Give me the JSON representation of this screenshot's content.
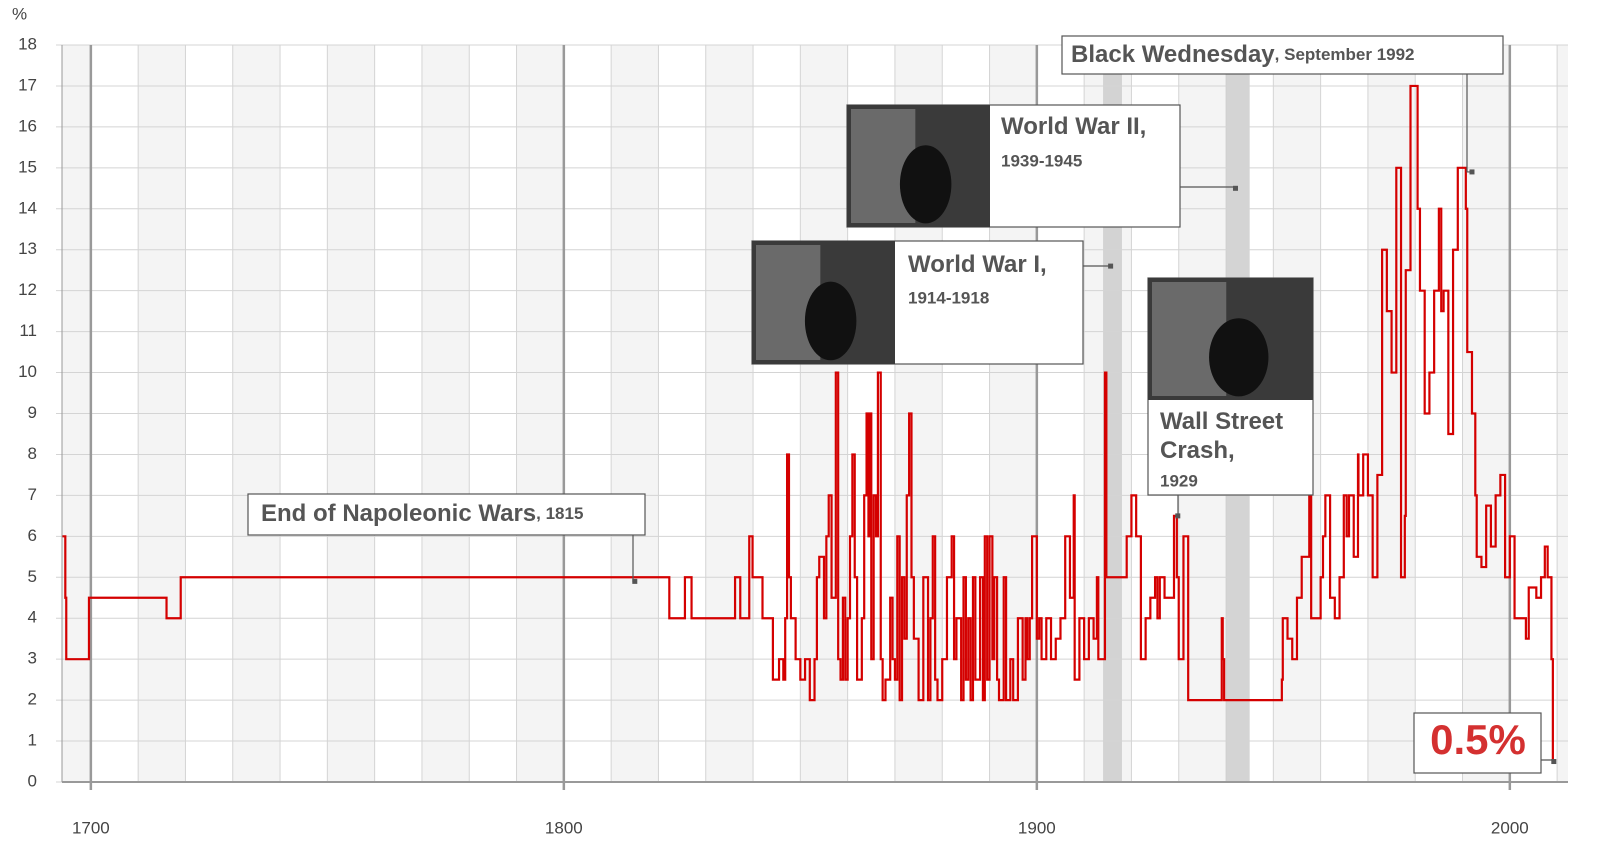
{
  "chart_data": {
    "type": "line",
    "step": true,
    "y_unit": "%",
    "color": "#d40000",
    "xlim": [
      1693.9,
      2012.3
    ],
    "ylim": [
      0,
      18
    ],
    "xticks": [
      1700,
      1800,
      1900,
      2000
    ],
    "x_minor_step": 10,
    "yticks": [
      0,
      1,
      2,
      3,
      4,
      5,
      6,
      7,
      8,
      9,
      10,
      11,
      12,
      13,
      14,
      15,
      16,
      17,
      18
    ],
    "grid": true,
    "spans": [
      {
        "x0": 1914,
        "x1": 1918,
        "color": "#cccccc"
      },
      {
        "x0": 1940,
        "x1": 1945,
        "color": "#cccccc"
      }
    ],
    "x": [
      1694,
      1694.6,
      1694.8,
      1699.6,
      1716,
      1719,
      1822.3,
      1825.6,
      1827,
      1836.2,
      1837.3,
      1839.2,
      1839.9,
      1842,
      1844.2,
      1845.5,
      1846.4,
      1846.8,
      1847.2,
      1847.6,
      1848,
      1849,
      1850,
      1851,
      1852,
      1853,
      1853.5,
      1854,
      1855,
      1855.5,
      1856,
      1856.6,
      1857.5,
      1858,
      1858.5,
      1859,
      1859.5,
      1860,
      1860.5,
      1861,
      1861.5,
      1862,
      1863,
      1863.5,
      1864,
      1864.4,
      1864.8,
      1865,
      1865.5,
      1866,
      1866.4,
      1867,
      1867.4,
      1868,
      1869,
      1869.5,
      1870,
      1870.5,
      1871,
      1871.5,
      1872,
      1872.5,
      1873,
      1873.5,
      1874,
      1875,
      1876,
      1877,
      1877.5,
      1878,
      1878.5,
      1879,
      1880,
      1881,
      1882,
      1882.5,
      1883,
      1884,
      1884.5,
      1885,
      1885.5,
      1886,
      1886.5,
      1887,
      1888,
      1888.6,
      1889,
      1889.5,
      1890,
      1890.6,
      1891,
      1891.6,
      1892,
      1893,
      1893.5,
      1894.4,
      1895,
      1896,
      1897,
      1897.6,
      1898,
      1898.5,
      1899,
      1900,
      1900.5,
      1901,
      1902,
      1903,
      1904,
      1905,
      1906,
      1907,
      1907.8,
      1908,
      1909,
      1910,
      1911,
      1912,
      1912.7,
      1913,
      1914.4,
      1914.7,
      1919,
      1920,
      1921,
      1922,
      1923,
      1924,
      1925,
      1925.5,
      1926,
      1927,
      1929,
      1929.6,
      1930,
      1931,
      1932,
      1939.1,
      1939.3,
      1939.6,
      1951.8,
      1952,
      1953,
      1954,
      1955,
      1956,
      1957.6,
      1958,
      1960,
      1960.5,
      1961,
      1962,
      1963,
      1964,
      1964.9,
      1965.5,
      1966,
      1967,
      1967.9,
      1968,
      1969,
      1970,
      1971,
      1972,
      1973,
      1974,
      1975,
      1976,
      1977,
      1977.8,
      1978,
      1979,
      1980.5,
      1981,
      1982,
      1983,
      1984,
      1985,
      1985.5,
      1986,
      1987,
      1988,
      1989,
      1990.7,
      1991,
      1992,
      1992.7,
      1993,
      1994,
      1995,
      1996,
      1997,
      1998,
      1999,
      2000,
      2001,
      2003.4,
      2004,
      2005.6,
      2006.6,
      2007.4,
      2008,
      2008.8,
      2009.1,
      2009.5
    ],
    "values": [
      6,
      4.5,
      3,
      4.5,
      4,
      5,
      4,
      5,
      4,
      5,
      4,
      6,
      5,
      4,
      2.5,
      3,
      2.5,
      4,
      8,
      5,
      4,
      3,
      2.5,
      3,
      2,
      3,
      5,
      5.5,
      4,
      6,
      7,
      4.5,
      10,
      3,
      2.5,
      4.5,
      2.5,
      4,
      6,
      8,
      5,
      2.5,
      4,
      7,
      9,
      6,
      9,
      3,
      7,
      6,
      10,
      3,
      2,
      2.5,
      4.5,
      3,
      2.5,
      6,
      2,
      5,
      3.5,
      7,
      9,
      5,
      3.5,
      2,
      5,
      2,
      4,
      6,
      2.5,
      2,
      3,
      5,
      6,
      3,
      4,
      2,
      5,
      2.5,
      4,
      2,
      5,
      2.5,
      5,
      2,
      6,
      2.5,
      6,
      3,
      5,
      2.5,
      2,
      5,
      2,
      3,
      2,
      4,
      2.5,
      4,
      3,
      4,
      6,
      3.5,
      4,
      3,
      4,
      3,
      3.5,
      4,
      6,
      4.5,
      7,
      2.5,
      4,
      3,
      4,
      3.5,
      5,
      3,
      10,
      5,
      6,
      7,
      6,
      3,
      4,
      4.5,
      5,
      4,
      5,
      4.5,
      6.5,
      5,
      3,
      6,
      2,
      4,
      3,
      2,
      2.5,
      4,
      3.5,
      3,
      4.5,
      5.5,
      7,
      4,
      5,
      6,
      7,
      4.5,
      4,
      5,
      7,
      6,
      7,
      5.5,
      8,
      7,
      8,
      7,
      5,
      7.5,
      13,
      11.5,
      10,
      15,
      5,
      6.5,
      12.5,
      17,
      14,
      12,
      9,
      10,
      12,
      14,
      11.5,
      12,
      8.5,
      13,
      15,
      14,
      10.5,
      9,
      7,
      5.5,
      5.25,
      6.75,
      5.75,
      7,
      7.5,
      5,
      6,
      4,
      3.5,
      4.75,
      4.5,
      5,
      5.75,
      5,
      3,
      0.5,
      0.5
    ],
    "annotations": [
      {
        "label": [
          "End of Napoleonic Wars"
        ],
        "sublabel": ", 1815",
        "x": 1815,
        "y": 4.9
      },
      {
        "label": [
          "World War I,"
        ],
        "sublabel": "1914-1918",
        "x": 1915.6,
        "y": 12.6
      },
      {
        "label": [
          "World War II,"
        ],
        "sublabel": "1939-1945",
        "x": 1942,
        "y": 14.5
      },
      {
        "label": [
          "Wall Street",
          "Crash,"
        ],
        "sublabel": "1929",
        "x": 1929.8,
        "y": 6.5
      },
      {
        "label": [
          "Black Wednesday"
        ],
        "sublabel": ", September 1992",
        "x": 1992,
        "y": 14.9
      },
      {
        "label": [
          "0.5%"
        ],
        "x": 2009.3,
        "y": 0.5
      }
    ]
  }
}
